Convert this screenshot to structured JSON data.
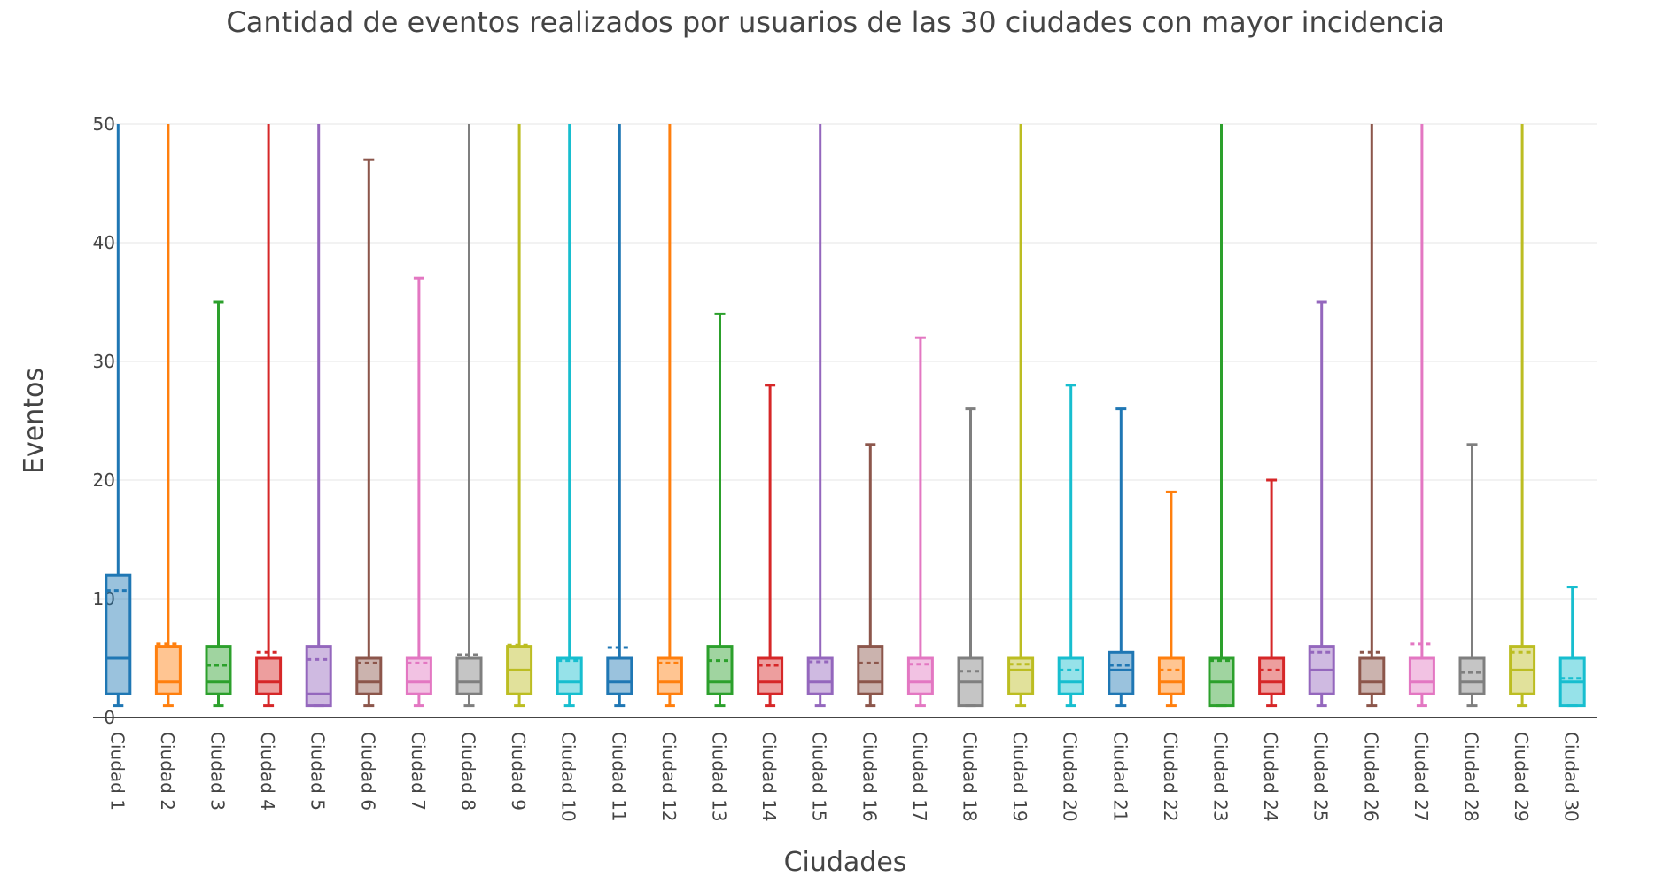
{
  "chart_data": {
    "type": "box",
    "title": "Cantidad de eventos realizados por usuarios de las 30 ciudades con mayor incidencia",
    "xlabel": "Ciudades",
    "ylabel": "Eventos",
    "ylim": [
      0,
      50
    ],
    "yticks": [
      0,
      10,
      20,
      30,
      40,
      50
    ],
    "grid": true,
    "legend": "none",
    "categories": [
      "Ciudad 1",
      "Ciudad 2",
      "Ciudad 3",
      "Ciudad 4",
      "Ciudad 5",
      "Ciudad 6",
      "Ciudad 7",
      "Ciudad 8",
      "Ciudad 9",
      "Ciudad 10",
      "Ciudad 11",
      "Ciudad 12",
      "Ciudad 13",
      "Ciudad 14",
      "Ciudad 15",
      "Ciudad 16",
      "Ciudad 17",
      "Ciudad 18",
      "Ciudad 19",
      "Ciudad 20",
      "Ciudad 21",
      "Ciudad 22",
      "Ciudad 23",
      "Ciudad 24",
      "Ciudad 25",
      "Ciudad 26",
      "Ciudad 27",
      "Ciudad 28",
      "Ciudad 29",
      "Ciudad 30"
    ],
    "colors": [
      "#1f77b4",
      "#ff7f0e",
      "#2ca02c",
      "#d62728",
      "#9467bd",
      "#8c564b",
      "#e377c2",
      "#7f7f7f",
      "#bcbd22",
      "#17becf"
    ],
    "boxes": [
      {
        "min": 1,
        "q1": 2,
        "median": 5,
        "q3": 12,
        "max": 50,
        "mean": 10.7
      },
      {
        "min": 1,
        "q1": 2,
        "median": 3,
        "q3": 6,
        "max": 50,
        "mean": 6.2
      },
      {
        "min": 1,
        "q1": 2,
        "median": 3,
        "q3": 6,
        "max": 35,
        "mean": 4.4
      },
      {
        "min": 1,
        "q1": 2,
        "median": 3,
        "q3": 5,
        "max": 50,
        "mean": 5.5
      },
      {
        "min": 1,
        "q1": 1,
        "median": 2,
        "q3": 6,
        "max": 50,
        "mean": 4.9
      },
      {
        "min": 1,
        "q1": 2,
        "median": 3,
        "q3": 5,
        "max": 47,
        "mean": 4.6
      },
      {
        "min": 1,
        "q1": 2,
        "median": 3,
        "q3": 5,
        "max": 37,
        "mean": 4.6
      },
      {
        "min": 1,
        "q1": 2,
        "median": 3,
        "q3": 5,
        "max": 50,
        "mean": 5.3
      },
      {
        "min": 1,
        "q1": 2,
        "median": 4,
        "q3": 6,
        "max": 50,
        "mean": 6.1
      },
      {
        "min": 1,
        "q1": 2,
        "median": 3,
        "q3": 5,
        "max": 50,
        "mean": 4.8
      },
      {
        "min": 1,
        "q1": 2,
        "median": 3,
        "q3": 5,
        "max": 50,
        "mean": 5.9
      },
      {
        "min": 1,
        "q1": 2,
        "median": 3,
        "q3": 5,
        "max": 50,
        "mean": 4.6
      },
      {
        "min": 1,
        "q1": 2,
        "median": 3,
        "q3": 6,
        "max": 34,
        "mean": 4.8
      },
      {
        "min": 1,
        "q1": 2,
        "median": 3,
        "q3": 5,
        "max": 28,
        "mean": 4.4
      },
      {
        "min": 1,
        "q1": 2,
        "median": 3,
        "q3": 5,
        "max": 50,
        "mean": 4.7
      },
      {
        "min": 1,
        "q1": 2,
        "median": 3,
        "q3": 6,
        "max": 23,
        "mean": 4.6
      },
      {
        "min": 1,
        "q1": 2,
        "median": 3,
        "q3": 5,
        "max": 32,
        "mean": 4.5
      },
      {
        "min": 1,
        "q1": 1,
        "median": 3,
        "q3": 5,
        "max": 26,
        "mean": 3.9
      },
      {
        "min": 1,
        "q1": 2,
        "median": 4,
        "q3": 5,
        "max": 50,
        "mean": 4.5
      },
      {
        "min": 1,
        "q1": 2,
        "median": 3,
        "q3": 5,
        "max": 28,
        "mean": 4.0
      },
      {
        "min": 1,
        "q1": 2,
        "median": 4,
        "q3": 5.5,
        "max": 26,
        "mean": 4.4
      },
      {
        "min": 1,
        "q1": 2,
        "median": 3,
        "q3": 5,
        "max": 19,
        "mean": 4.0
      },
      {
        "min": 1,
        "q1": 1,
        "median": 3,
        "q3": 5,
        "max": 50,
        "mean": 4.8
      },
      {
        "min": 1,
        "q1": 2,
        "median": 3,
        "q3": 5,
        "max": 20,
        "mean": 4.0
      },
      {
        "min": 1,
        "q1": 2,
        "median": 4,
        "q3": 6,
        "max": 35,
        "mean": 5.5
      },
      {
        "min": 1,
        "q1": 2,
        "median": 3,
        "q3": 5,
        "max": 50,
        "mean": 5.5
      },
      {
        "min": 1,
        "q1": 2,
        "median": 3,
        "q3": 5,
        "max": 50,
        "mean": 6.2
      },
      {
        "min": 1,
        "q1": 2,
        "median": 3,
        "q3": 5,
        "max": 23,
        "mean": 3.8
      },
      {
        "min": 1,
        "q1": 2,
        "median": 4,
        "q3": 6,
        "max": 50,
        "mean": 5.5
      },
      {
        "min": 1,
        "q1": 1,
        "median": 3,
        "q3": 5,
        "max": 11,
        "mean": 3.3
      }
    ]
  }
}
